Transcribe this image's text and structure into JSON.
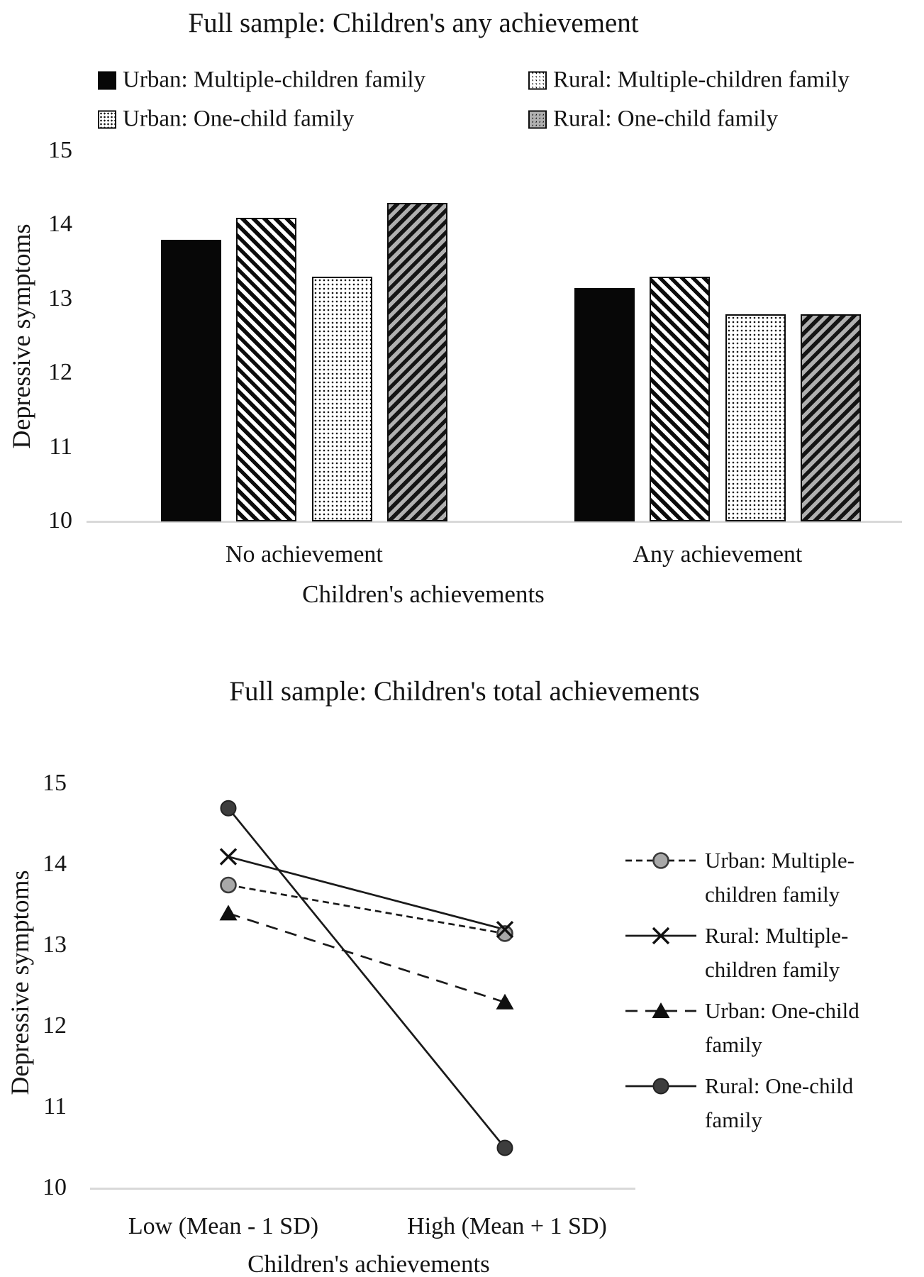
{
  "chart_data": [
    {
      "type": "bar",
      "title": "Full sample: Children's any achievement",
      "ylabel": "Depressive symptoms",
      "xlabel": "Children's achievements",
      "ylim": [
        10,
        15
      ],
      "yticks": [
        15,
        14,
        13,
        12,
        11,
        10
      ],
      "grid": false,
      "legend_position": "top",
      "categories": [
        "No achievement",
        "Any achievement"
      ],
      "series": [
        {
          "name": "Urban: Multiple-children family",
          "pattern": "solid-black",
          "values": [
            13.8,
            13.15
          ]
        },
        {
          "name": "Rural: Multiple-children family",
          "pattern": "diagonal-stripes-white",
          "values": [
            14.1,
            13.3
          ]
        },
        {
          "name": "Urban: One-child family",
          "pattern": "dots-white",
          "values": [
            13.3,
            12.8
          ]
        },
        {
          "name": "Rural: One-child family",
          "pattern": "diagonal-stripes-gray",
          "values": [
            14.3,
            12.8
          ]
        }
      ]
    },
    {
      "type": "line",
      "title": "Full sample: Children's total achievements",
      "ylabel": "Depressive symptoms",
      "xlabel": "Children's achievements",
      "ylim": [
        10,
        15
      ],
      "yticks": [
        15,
        14,
        13,
        12,
        11,
        10
      ],
      "grid": false,
      "legend_position": "right",
      "categories": [
        "Low (Mean - 1 SD)",
        "High (Mean + 1 SD)"
      ],
      "series": [
        {
          "name": "Urban: Multiple-children family",
          "line": "dashed",
          "marker": "circle-gray",
          "values": [
            13.75,
            13.15
          ]
        },
        {
          "name": "Rural: Multiple-children family",
          "line": "solid",
          "marker": "x",
          "values": [
            14.1,
            13.2
          ]
        },
        {
          "name": "Urban: One-child family",
          "line": "long-dashed",
          "marker": "triangle-black",
          "values": [
            13.4,
            12.3
          ]
        },
        {
          "name": "Rural: One-child family",
          "line": "solid",
          "marker": "circle-dark",
          "values": [
            14.7,
            10.5
          ]
        }
      ]
    }
  ],
  "colors": {
    "ink": "#141414",
    "axis_line": "#d9d9d9",
    "bar_gray": "#b0b0b0",
    "marker_gray": "#a8a8a8",
    "marker_dark": "#3d3d3d"
  }
}
